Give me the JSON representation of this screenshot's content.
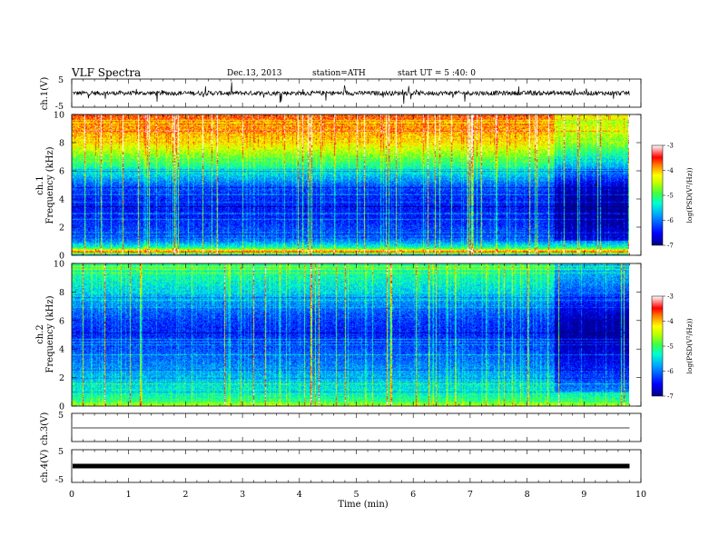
{
  "header": {
    "title": "VLF  Spectra",
    "date": "Dec.13, 2013",
    "station": "station=ATH",
    "start": "start  UT =   5 :40: 0"
  },
  "colors": {
    "trace": "#000000",
    "spectrogram_scale": [
      "#000080",
      "#0000ff",
      "#0070ff",
      "#00c8ff",
      "#00ff90",
      "#7fff00",
      "#ffff00",
      "#ff8000",
      "#ff0000",
      "#ffffff"
    ]
  },
  "chart_data": [
    {
      "type": "line",
      "name": "ch1-waveform",
      "ylabel": "ch.1(V)",
      "ylim": [
        -5,
        5
      ],
      "yticks": [
        "5",
        "-5"
      ],
      "description_values": "noisy broadband signal around 0 V with spikes up to about ±4 V",
      "xlim": [
        0,
        10
      ]
    },
    {
      "type": "heatmap",
      "name": "ch1-spectrogram",
      "ylabel_top": "ch.1",
      "ylabel": "Frequency (kHz)",
      "ylim": [
        0,
        10
      ],
      "yticks": [
        "0",
        "2",
        "4",
        "6",
        "8",
        "10"
      ],
      "xlim": [
        0,
        10
      ],
      "data_end_min": 9.8,
      "colorbar": {
        "label": "log(PSD(V²/Hz))",
        "range": [
          -7,
          -3
        ],
        "ticks": [
          "-3",
          "-4",
          "-5",
          "-6",
          "-7"
        ]
      },
      "bands_kHz_to_logPSD": [
        [
          0.0,
          -5.8
        ],
        [
          0.2,
          -3.6
        ],
        [
          0.5,
          -5.2
        ],
        [
          1.0,
          -6.0
        ],
        [
          2.0,
          -6.3
        ],
        [
          3.0,
          -6.5
        ],
        [
          4.0,
          -6.4
        ],
        [
          5.0,
          -6.1
        ],
        [
          6.0,
          -5.4
        ],
        [
          7.0,
          -4.8
        ],
        [
          8.0,
          -4.2
        ],
        [
          9.0,
          -3.9
        ],
        [
          10.0,
          -3.7
        ]
      ],
      "quiet_interval_min": [
        8.5,
        9.8
      ]
    },
    {
      "type": "heatmap",
      "name": "ch2-spectrogram",
      "ylabel_top": "ch.2",
      "ylabel": "Frequency (kHz)",
      "ylim": [
        0,
        10
      ],
      "yticks": [
        "0",
        "2",
        "4",
        "6",
        "8",
        "10"
      ],
      "xlim": [
        0,
        10
      ],
      "data_end_min": 9.8,
      "colorbar": {
        "label": "log(PSD(V²/Hz))",
        "range": [
          -7,
          -3
        ],
        "ticks": [
          "-3",
          "-4",
          "-5",
          "-6",
          "-7"
        ]
      },
      "bands_kHz_to_logPSD": [
        [
          0.0,
          -4.6
        ],
        [
          0.5,
          -5.2
        ],
        [
          1.0,
          -5.4
        ],
        [
          2.0,
          -5.7
        ],
        [
          3.0,
          -6.0
        ],
        [
          4.0,
          -6.2
        ],
        [
          5.0,
          -6.4
        ],
        [
          6.0,
          -6.3
        ],
        [
          7.0,
          -6.0
        ],
        [
          8.0,
          -5.6
        ],
        [
          9.0,
          -5.3
        ],
        [
          10.0,
          -5.1
        ]
      ],
      "quiet_interval_min": [
        8.5,
        9.8
      ]
    },
    {
      "type": "line",
      "name": "ch3-waveform",
      "ylabel": "ch.3(V)",
      "ylim": [
        -5,
        5
      ],
      "yticks": [
        "5"
      ],
      "constant_value": 0,
      "xlim": [
        0,
        10
      ]
    },
    {
      "type": "line",
      "name": "ch4-waveform",
      "ylabel": "ch.4(V)",
      "ylim": [
        -5,
        5
      ],
      "yticks": [
        "5",
        "-5"
      ],
      "constant_value": 0,
      "xlim": [
        0,
        10
      ],
      "xlabel": "Time  (min)",
      "xticks": [
        "0",
        "1",
        "2",
        "3",
        "4",
        "5",
        "6",
        "7",
        "8",
        "9",
        "10"
      ]
    }
  ]
}
